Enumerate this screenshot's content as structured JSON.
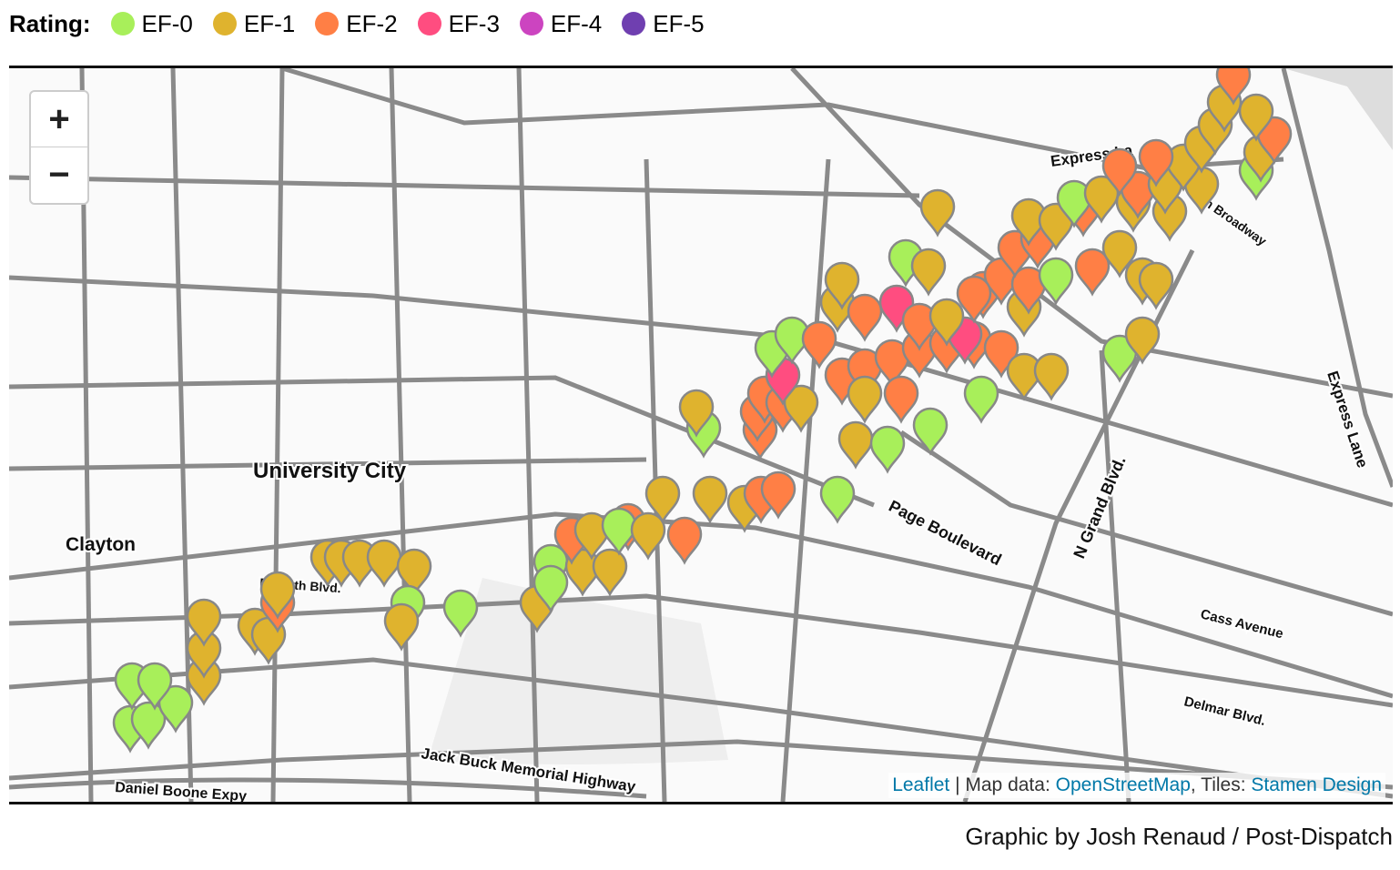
{
  "legend": {
    "title": "Rating:",
    "items": [
      {
        "label": "EF-0",
        "color": "#a8ef5a"
      },
      {
        "label": "EF-1",
        "color": "#dfb32e"
      },
      {
        "label": "EF-2",
        "color": "#ff7f45"
      },
      {
        "label": "EF-3",
        "color": "#ff4d80"
      },
      {
        "label": "EF-4",
        "color": "#cc44c0"
      },
      {
        "label": "EF-5",
        "color": "#6f3fb0"
      }
    ]
  },
  "map": {
    "zoom_in": "+",
    "zoom_out": "−",
    "labels": {
      "university_city": "University City",
      "clayton": "Clayton",
      "express_lane_top": "Express La",
      "express_lane_right": "Express Lane",
      "page": "Page Boulevard",
      "grand": "N Grand Blvd.",
      "cass": "Cass Avenue",
      "delmar": "Delmar Blvd.",
      "jack_buck": "Jack Buck Memorial Highway",
      "daniel_boone": "Daniel Boone Expy",
      "forsyth": "Forsyth Blvd.",
      "broadway": "h Broadway"
    },
    "attribution": {
      "leaflet": "Leaflet",
      "map_data": " | Map data: ",
      "osm": "OpenStreetMap",
      "tiles": ", Tiles: ",
      "stamen": "Stamen Design"
    }
  },
  "credit": "Graphic by Josh Renaud / Post-Dispatch"
}
